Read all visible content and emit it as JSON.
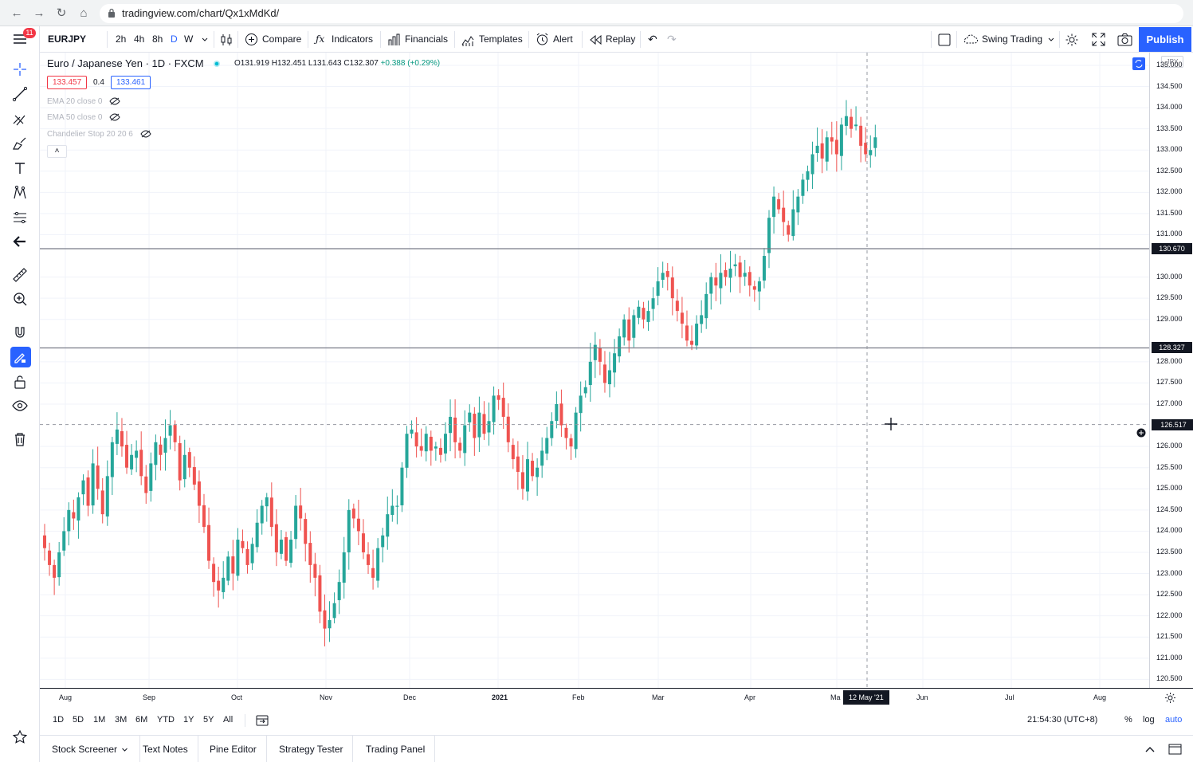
{
  "browser": {
    "url": "tradingview.com/chart/Qx1xMdKd/"
  },
  "rail": {
    "badge": "11"
  },
  "toolbar": {
    "symbol": "EURJPY",
    "intervals": [
      "2h",
      "4h",
      "8h",
      "D",
      "W"
    ],
    "active_interval": "D",
    "compare": "Compare",
    "indicators": "Indicators",
    "financials": "Financials",
    "templates": "Templates",
    "alert": "Alert",
    "replay": "Replay",
    "layout_name": "Swing Trading",
    "publish": "Publish"
  },
  "legend": {
    "title": "Euro / Japanese Yen · 1D · FXCM",
    "ohlc_o_label": "O",
    "ohlc_o": "131.919",
    "ohlc_h_label": "H",
    "ohlc_h": "132.451",
    "ohlc_l_label": "L",
    "ohlc_l": "131.643",
    "ohlc_c_label": "C",
    "ohlc_c": "132.307",
    "ohlc_change": "+0.388 (+0.29%)",
    "bid": "133.457",
    "spread": "0.4",
    "ask": "133.461",
    "indicators": [
      "EMA 20 close 0",
      "EMA 50 close 0",
      "Chandelier Stop 20 20 6"
    ]
  },
  "price_axis": {
    "currency": "JPY",
    "labels": [
      "135.000",
      "134.500",
      "134.000",
      "133.500",
      "133.000",
      "132.500",
      "132.000",
      "131.500",
      "131.000",
      "130.000",
      "129.500",
      "129.000",
      "128.000",
      "127.500",
      "127.000",
      "126.000",
      "125.500",
      "125.000",
      "124.500",
      "124.000",
      "123.500",
      "123.000",
      "122.500",
      "122.000",
      "121.500",
      "121.000",
      "120.500"
    ],
    "line_upper": "130.670",
    "line_lower": "128.327",
    "crosshair": "126.517"
  },
  "time_axis": {
    "labels": [
      "Aug",
      "Sep",
      "Oct",
      "Nov",
      "Dec",
      "2021",
      "Feb",
      "Mar",
      "Apr",
      "Ma",
      "Jun",
      "Jul",
      "Aug"
    ],
    "crosshair_date": "12 May '21"
  },
  "range_bar": {
    "ranges": [
      "1D",
      "5D",
      "1M",
      "3M",
      "6M",
      "YTD",
      "1Y",
      "5Y",
      "All"
    ],
    "clock": "21:54:30 (UTC+8)",
    "percent": "%",
    "log": "log",
    "auto": "auto"
  },
  "bottom_panel": {
    "tabs": [
      "Stock Screener",
      "Text Notes",
      "Pine Editor",
      "Strategy Tester",
      "Trading Panel"
    ]
  },
  "colors": {
    "up": "#26a69a",
    "down": "#ef5350",
    "accent": "#2962ff"
  },
  "chart_data": {
    "type": "candlestick",
    "symbol": "EURJPY",
    "ylim": [
      120.3,
      135.3
    ],
    "horizontal_lines": [
      130.67,
      128.327
    ],
    "closes": [
      123.6,
      123.2,
      122.9,
      123.5,
      124.0,
      124.5,
      124.3,
      124.8,
      125.2,
      124.6,
      125.6,
      125.0,
      124.4,
      125.3,
      126.1,
      126.4,
      126.0,
      125.5,
      125.8,
      125.9,
      125.3,
      124.9,
      125.6,
      126.1,
      125.8,
      126.2,
      126.5,
      126.1,
      125.2,
      125.8,
      125.5,
      125.1,
      124.6,
      124.1,
      123.3,
      122.8,
      122.6,
      122.9,
      123.4,
      123.0,
      123.8,
      123.6,
      123.2,
      123.7,
      124.2,
      124.6,
      124.8,
      124.1,
      123.5,
      123.8,
      123.3,
      123.8,
      124.6,
      124.3,
      123.7,
      123.2,
      122.9,
      122.1,
      121.7,
      121.9,
      122.3,
      122.8,
      123.5,
      124.5,
      124.3,
      124.0,
      123.5,
      123.2,
      122.9,
      123.6,
      123.9,
      124.4,
      124.6,
      124.6,
      125.5,
      126.3,
      126.4,
      126.0,
      125.9,
      126.3,
      125.9,
      126.0,
      125.8,
      126.3,
      126.7,
      126.1,
      125.9,
      126.5,
      126.8,
      126.2,
      126.8,
      126.3,
      126.6,
      127.2,
      127.1,
      126.7,
      126.1,
      125.7,
      125.4,
      125.0,
      125.7,
      125.3,
      125.5,
      125.9,
      126.2,
      126.6,
      127.0,
      126.5,
      126.2,
      126.0,
      126.8,
      127.2,
      127.4,
      128.0,
      128.4,
      128.0,
      127.5,
      127.8,
      128.2,
      128.6,
      129.0,
      128.5,
      129.1,
      129.3,
      129.0,
      129.2,
      129.5,
      129.9,
      130.1,
      130.0,
      129.5,
      129.2,
      128.9,
      128.5,
      128.4,
      128.9,
      129.1,
      129.6,
      130.0,
      129.8,
      130.1,
      130.0,
      130.2,
      130.3,
      130.0,
      130.1,
      129.8,
      129.7,
      129.9,
      130.5,
      131.4,
      131.9,
      131.6,
      131.3,
      131.0,
      131.6,
      131.9,
      132.3,
      132.5,
      132.9,
      133.1,
      132.8,
      133.3,
      133.2,
      132.9,
      133.6,
      133.8,
      133.5,
      133.6,
      133.1,
      132.9,
      133.0,
      133.3
    ]
  }
}
